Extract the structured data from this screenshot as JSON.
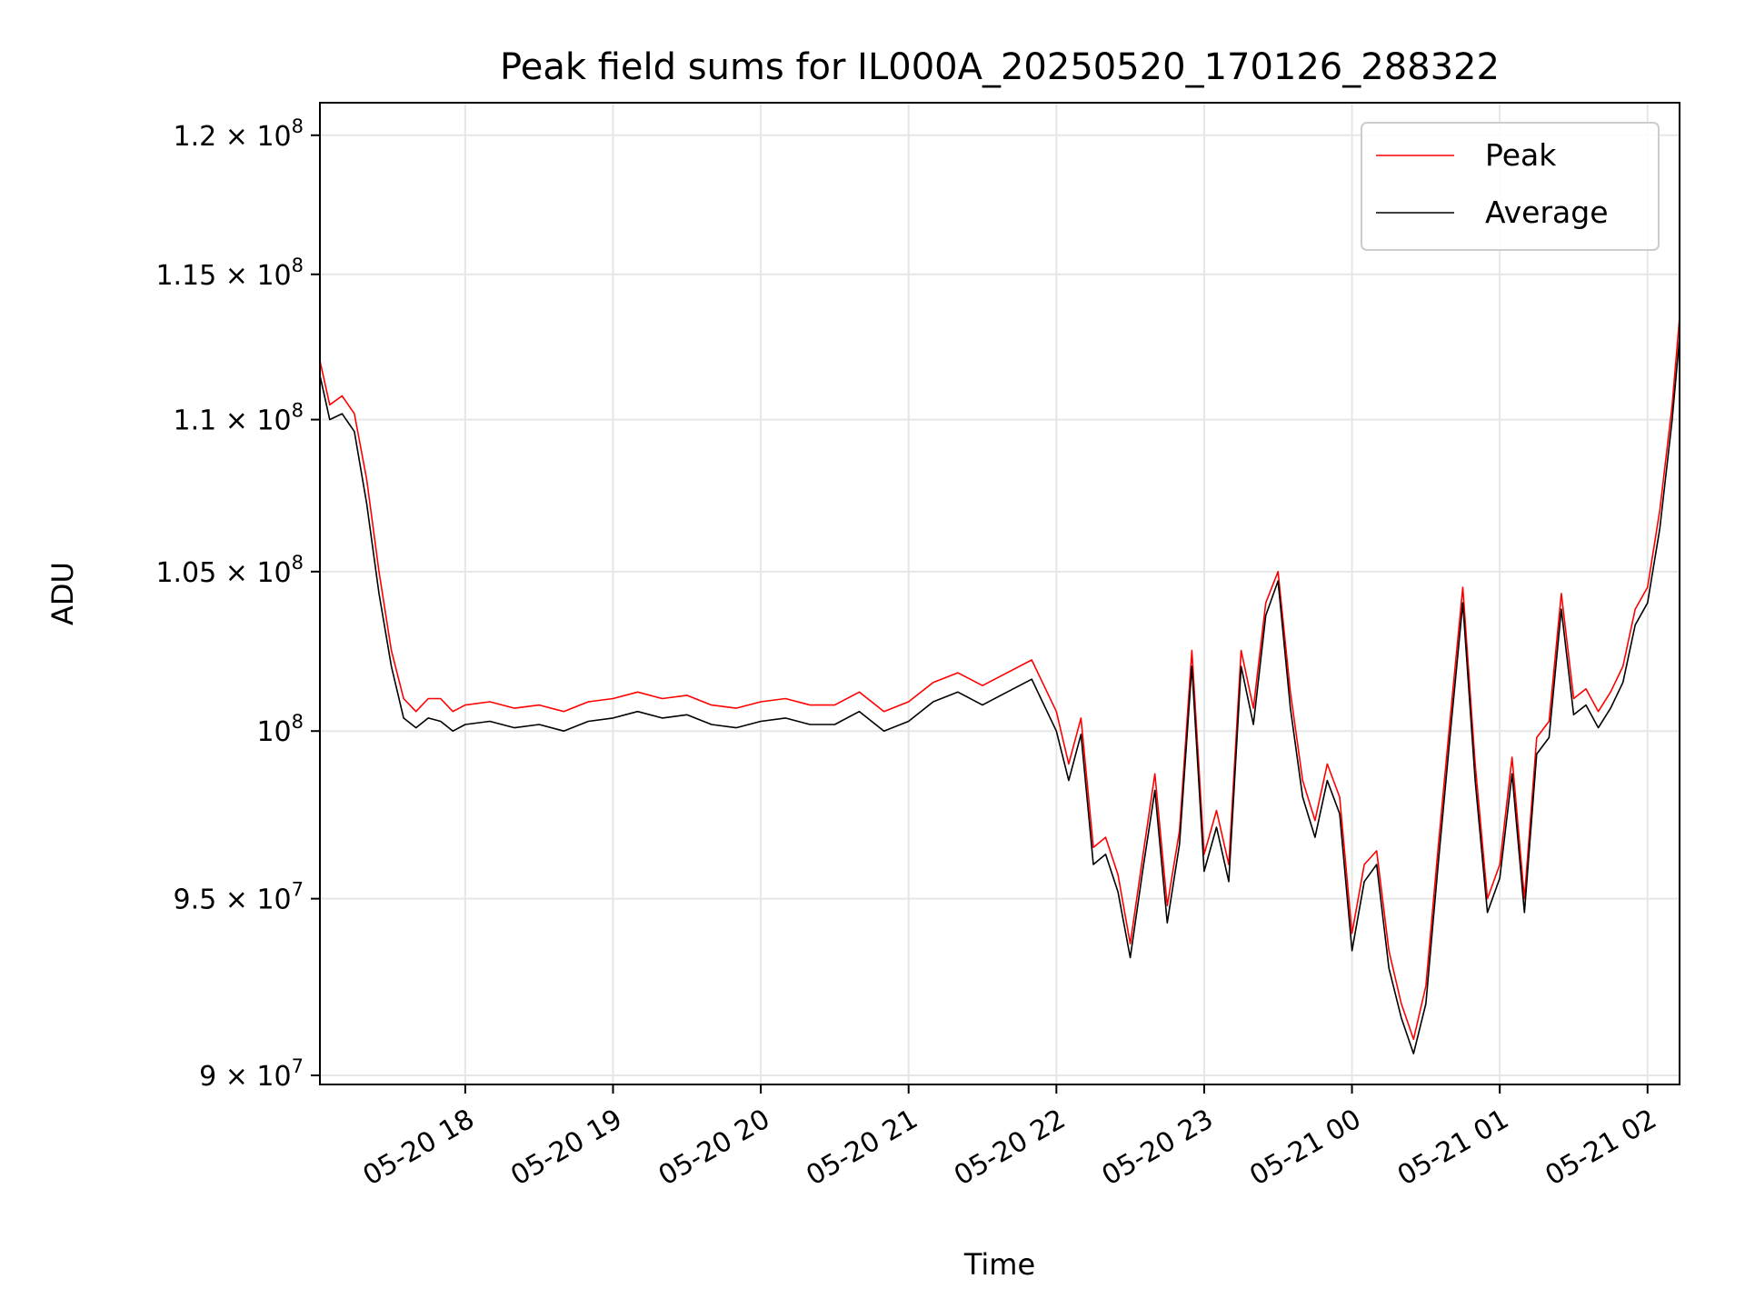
{
  "chart_data": {
    "type": "line",
    "title": "Peak field sums for IL000A_20250520_170126_288322",
    "xlabel": "Time",
    "ylabel": "ADU",
    "yscale": "log",
    "xlim": [
      "2025-05-20 17:01",
      "2025-05-21 02:13"
    ],
    "ylim": [
      89750000,
      121200000
    ],
    "grid": true,
    "legend_position": "top-right",
    "x_ticks": [
      "05-20 18",
      "05-20 19",
      "05-20 20",
      "05-20 21",
      "05-20 22",
      "05-20 23",
      "05-21 00",
      "05-21 01",
      "05-21 02"
    ],
    "y_ticks": [
      {
        "value": 90000000,
        "mantissa": "9",
        "exp": "7"
      },
      {
        "value": 95000000,
        "mantissa": "9.5",
        "exp": "7"
      },
      {
        "value": 100000000,
        "mantissa": "",
        "exp": "8"
      },
      {
        "value": 105000000,
        "mantissa": "1.05",
        "exp": "8"
      },
      {
        "value": 110000000,
        "mantissa": "1.1",
        "exp": "8"
      },
      {
        "value": 115000000,
        "mantissa": "1.15",
        "exp": "8"
      },
      {
        "value": 120000000,
        "mantissa": "1.2",
        "exp": "8"
      }
    ],
    "x": [
      "2025-05-20 17:01",
      "2025-05-20 17:05",
      "2025-05-20 17:10",
      "2025-05-20 17:15",
      "2025-05-20 17:20",
      "2025-05-20 17:25",
      "2025-05-20 17:30",
      "2025-05-20 17:35",
      "2025-05-20 17:40",
      "2025-05-20 17:45",
      "2025-05-20 17:50",
      "2025-05-20 17:55",
      "2025-05-20 18:00",
      "2025-05-20 18:10",
      "2025-05-20 18:20",
      "2025-05-20 18:30",
      "2025-05-20 18:40",
      "2025-05-20 18:50",
      "2025-05-20 19:00",
      "2025-05-20 19:10",
      "2025-05-20 19:20",
      "2025-05-20 19:30",
      "2025-05-20 19:40",
      "2025-05-20 19:50",
      "2025-05-20 20:00",
      "2025-05-20 20:10",
      "2025-05-20 20:20",
      "2025-05-20 20:30",
      "2025-05-20 20:40",
      "2025-05-20 20:50",
      "2025-05-20 21:00",
      "2025-05-20 21:10",
      "2025-05-20 21:20",
      "2025-05-20 21:30",
      "2025-05-20 21:40",
      "2025-05-20 21:50",
      "2025-05-20 22:00",
      "2025-05-20 22:05",
      "2025-05-20 22:10",
      "2025-05-20 22:15",
      "2025-05-20 22:20",
      "2025-05-20 22:25",
      "2025-05-20 22:30",
      "2025-05-20 22:35",
      "2025-05-20 22:40",
      "2025-05-20 22:45",
      "2025-05-20 22:50",
      "2025-05-20 22:55",
      "2025-05-20 23:00",
      "2025-05-20 23:05",
      "2025-05-20 23:10",
      "2025-05-20 23:15",
      "2025-05-20 23:20",
      "2025-05-20 23:25",
      "2025-05-20 23:30",
      "2025-05-20 23:35",
      "2025-05-20 23:40",
      "2025-05-20 23:45",
      "2025-05-20 23:50",
      "2025-05-20 23:55",
      "2025-05-21 00:00",
      "2025-05-21 00:05",
      "2025-05-21 00:10",
      "2025-05-21 00:15",
      "2025-05-21 00:20",
      "2025-05-21 00:25",
      "2025-05-21 00:30",
      "2025-05-21 00:35",
      "2025-05-21 00:40",
      "2025-05-21 00:45",
      "2025-05-21 00:50",
      "2025-05-21 00:55",
      "2025-05-21 01:00",
      "2025-05-21 01:05",
      "2025-05-21 01:10",
      "2025-05-21 01:15",
      "2025-05-21 01:20",
      "2025-05-21 01:25",
      "2025-05-21 01:30",
      "2025-05-21 01:35",
      "2025-05-21 01:40",
      "2025-05-21 01:45",
      "2025-05-21 01:50",
      "2025-05-21 01:55",
      "2025-05-21 02:00",
      "2025-05-21 02:05",
      "2025-05-21 02:10",
      "2025-05-21 02:13"
    ],
    "series": [
      {
        "name": "Peak",
        "color": "#ff0000",
        "values": [
          112000000,
          110500000,
          110800000,
          110200000,
          108000000,
          105000000,
          102500000,
          101000000,
          100600000,
          101000000,
          101000000,
          100600000,
          100800000,
          100900000,
          100700000,
          100800000,
          100600000,
          100900000,
          101000000,
          101200000,
          101000000,
          101100000,
          100800000,
          100700000,
          100900000,
          101000000,
          100800000,
          100800000,
          101200000,
          100600000,
          100900000,
          101500000,
          101800000,
          101400000,
          101800000,
          102200000,
          100600000,
          99000000,
          100400000,
          96500000,
          96800000,
          95700000,
          93700000,
          96200000,
          98700000,
          94800000,
          97000000,
          102500000,
          96300000,
          97600000,
          96000000,
          102500000,
          100700000,
          104000000,
          105000000,
          101200000,
          98500000,
          97300000,
          99000000,
          98000000,
          94000000,
          96000000,
          96400000,
          93500000,
          92000000,
          91000000,
          92500000,
          96500000,
          100500000,
          104500000,
          99000000,
          95000000,
          96000000,
          99200000,
          95000000,
          99800000,
          100300000,
          104300000,
          101000000,
          101300000,
          100600000,
          101200000,
          102000000,
          103800000,
          104500000,
          107000000,
          110500000,
          113500000
        ]
      },
      {
        "name": "Average",
        "color": "#000000",
        "values": [
          111500000,
          110000000,
          110200000,
          109600000,
          107200000,
          104300000,
          102000000,
          100400000,
          100100000,
          100400000,
          100300000,
          100000000,
          100200000,
          100300000,
          100100000,
          100200000,
          100000000,
          100300000,
          100400000,
          100600000,
          100400000,
          100500000,
          100200000,
          100100000,
          100300000,
          100400000,
          100200000,
          100200000,
          100600000,
          100000000,
          100300000,
          100900000,
          101200000,
          100800000,
          101200000,
          101600000,
          100000000,
          98500000,
          99900000,
          96000000,
          96300000,
          95200000,
          93300000,
          95800000,
          98200000,
          94300000,
          96600000,
          102000000,
          95800000,
          97100000,
          95500000,
          102000000,
          100200000,
          103600000,
          104700000,
          100700000,
          98000000,
          96800000,
          98500000,
          97500000,
          93500000,
          95500000,
          96000000,
          93000000,
          91600000,
          90600000,
          92000000,
          96000000,
          100000000,
          104000000,
          98500000,
          94600000,
          95600000,
          98700000,
          94600000,
          99300000,
          99800000,
          103800000,
          100500000,
          100800000,
          100100000,
          100700000,
          101500000,
          103300000,
          104000000,
          106400000,
          110000000,
          112800000
        ]
      }
    ]
  }
}
